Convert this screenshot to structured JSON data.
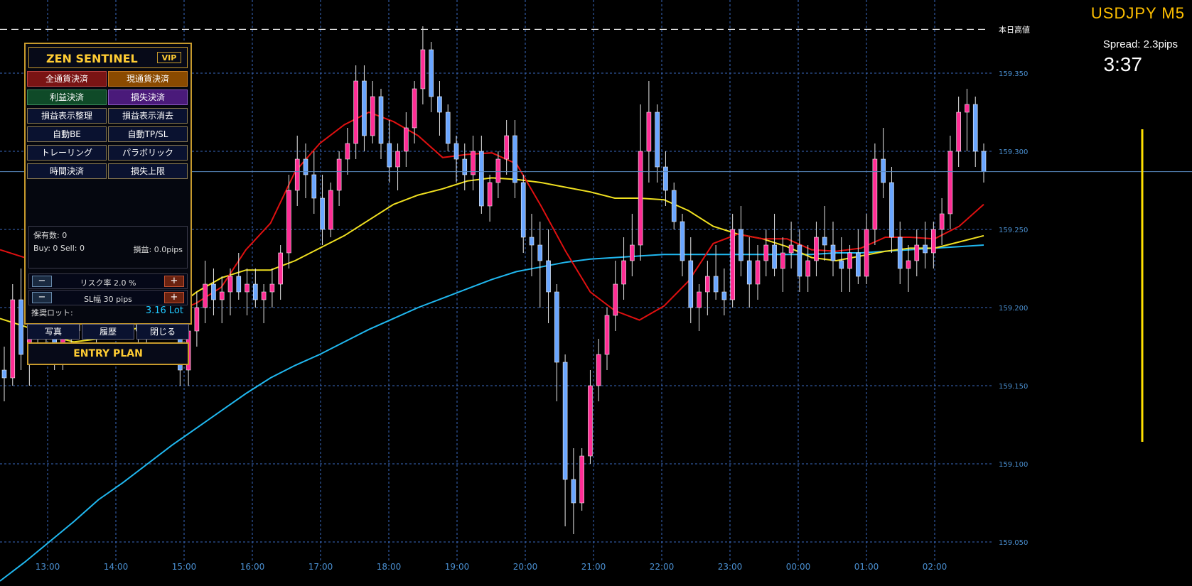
{
  "header": {
    "symbol": "USDJPY  M5",
    "spread": "Spread: 2.3pips",
    "timer": "3:37"
  },
  "chart_data": {
    "type": "candlestick",
    "symbol": "USDJPY",
    "timeframe": "M5",
    "ylim": [
      159.035,
      159.4
    ],
    "y_ticks": [
      "159.350",
      "159.300",
      "159.250",
      "159.200",
      "159.150",
      "159.100",
      "159.050"
    ],
    "y_tick_values": [
      159.35,
      159.3,
      159.25,
      159.2,
      159.15,
      159.1,
      159.05
    ],
    "x_ticks": [
      "13:00",
      "14:00",
      "15:00",
      "16:00",
      "17:00",
      "18:00",
      "19:00",
      "20:00",
      "21:00",
      "22:00",
      "23:00",
      "00:00",
      "01:00",
      "02:00"
    ],
    "day_high_label": "本日高値",
    "day_high": 159.378,
    "current_price": 159.287,
    "colors": {
      "bull": "#ff2d95",
      "bear": "#6aa6ff",
      "ma_fast": "#e01010",
      "ma_mid": "#f0e020",
      "ma_slow": "#20b8f0",
      "grid": "#3a6ac0"
    },
    "candles": [
      [
        159.16,
        159.175,
        159.14,
        159.155
      ],
      [
        159.155,
        159.215,
        159.15,
        159.205
      ],
      [
        159.205,
        159.225,
        159.16,
        159.17
      ],
      [
        159.17,
        159.2,
        159.15,
        159.185
      ],
      [
        159.185,
        159.21,
        159.175,
        159.195
      ],
      [
        159.195,
        159.215,
        159.17,
        159.18
      ],
      [
        159.18,
        159.2,
        159.16,
        159.175
      ],
      [
        159.175,
        159.19,
        159.16,
        159.185
      ],
      [
        159.185,
        159.205,
        159.175,
        159.195
      ],
      [
        159.195,
        159.215,
        159.185,
        159.205
      ],
      [
        159.205,
        159.22,
        159.185,
        159.19
      ],
      [
        159.19,
        159.205,
        159.175,
        159.195
      ],
      [
        159.195,
        159.215,
        159.185,
        159.2
      ],
      [
        159.2,
        159.225,
        159.19,
        159.21
      ],
      [
        159.21,
        159.23,
        159.195,
        159.2
      ],
      [
        159.2,
        159.215,
        159.18,
        159.19
      ],
      [
        159.19,
        159.205,
        159.17,
        159.185
      ],
      [
        159.185,
        159.2,
        159.175,
        159.19
      ],
      [
        159.19,
        159.215,
        159.18,
        159.205
      ],
      [
        159.205,
        159.23,
        159.195,
        159.215
      ],
      [
        159.215,
        159.225,
        159.18,
        159.185
      ],
      [
        159.185,
        159.195,
        159.15,
        159.16
      ],
      [
        159.16,
        159.195,
        159.15,
        159.185
      ],
      [
        159.185,
        159.21,
        159.175,
        159.2
      ],
      [
        159.2,
        159.23,
        159.19,
        159.215
      ],
      [
        159.215,
        159.225,
        159.195,
        159.205
      ],
      [
        159.205,
        159.22,
        159.19,
        159.21
      ],
      [
        159.21,
        159.225,
        159.195,
        159.22
      ],
      [
        159.22,
        159.235,
        159.205,
        159.21
      ],
      [
        159.21,
        159.225,
        159.195,
        159.215
      ],
      [
        159.215,
        159.225,
        159.2,
        159.205
      ],
      [
        159.205,
        159.215,
        159.19,
        159.21
      ],
      [
        159.21,
        159.225,
        159.2,
        159.215
      ],
      [
        159.215,
        159.24,
        159.205,
        159.235
      ],
      [
        159.235,
        159.285,
        159.225,
        159.275
      ],
      [
        159.275,
        159.31,
        159.265,
        159.295
      ],
      [
        159.295,
        159.305,
        159.27,
        159.285
      ],
      [
        159.285,
        159.3,
        159.26,
        159.27
      ],
      [
        159.27,
        159.285,
        159.24,
        159.25
      ],
      [
        159.25,
        159.28,
        159.245,
        159.275
      ],
      [
        159.275,
        159.3,
        159.265,
        159.295
      ],
      [
        159.295,
        159.315,
        159.285,
        159.305
      ],
      [
        159.305,
        159.355,
        159.295,
        159.345
      ],
      [
        159.345,
        159.355,
        159.3,
        159.31
      ],
      [
        159.31,
        159.345,
        159.305,
        159.335
      ],
      [
        159.335,
        159.34,
        159.295,
        159.305
      ],
      [
        159.305,
        159.32,
        159.28,
        159.29
      ],
      [
        159.29,
        159.305,
        159.275,
        159.3
      ],
      [
        159.3,
        159.325,
        159.29,
        159.315
      ],
      [
        159.315,
        159.345,
        159.305,
        159.34
      ],
      [
        159.34,
        159.38,
        159.33,
        159.365
      ],
      [
        159.365,
        159.37,
        159.325,
        159.335
      ],
      [
        159.335,
        159.345,
        159.31,
        159.325
      ],
      [
        159.325,
        159.33,
        159.3,
        159.305
      ],
      [
        159.305,
        159.31,
        159.28,
        159.295
      ],
      [
        159.295,
        159.305,
        159.275,
        159.285
      ],
      [
        159.285,
        159.31,
        159.275,
        159.3
      ],
      [
        159.3,
        159.31,
        159.26,
        159.265
      ],
      [
        159.265,
        159.285,
        159.255,
        159.28
      ],
      [
        159.28,
        159.3,
        159.27,
        159.295
      ],
      [
        159.295,
        159.32,
        159.285,
        159.31
      ],
      [
        159.31,
        159.32,
        159.27,
        159.28
      ],
      [
        159.28,
        159.285,
        159.235,
        159.245
      ],
      [
        159.245,
        159.26,
        159.22,
        159.24
      ],
      [
        159.24,
        159.255,
        159.2,
        159.23
      ],
      [
        159.23,
        159.25,
        159.19,
        159.21
      ],
      [
        159.21,
        159.215,
        159.14,
        159.165
      ],
      [
        159.165,
        159.17,
        159.06,
        159.09
      ],
      [
        159.09,
        159.11,
        159.055,
        159.075
      ],
      [
        159.075,
        159.11,
        159.07,
        159.105
      ],
      [
        159.105,
        159.16,
        159.1,
        159.15
      ],
      [
        159.15,
        159.18,
        159.14,
        159.17
      ],
      [
        159.17,
        159.2,
        159.16,
        159.195
      ],
      [
        159.195,
        159.23,
        159.185,
        159.215
      ],
      [
        159.215,
        159.245,
        159.205,
        159.23
      ],
      [
        159.23,
        159.26,
        159.22,
        159.24
      ],
      [
        159.24,
        159.33,
        159.23,
        159.3
      ],
      [
        159.3,
        159.345,
        159.28,
        159.325
      ],
      [
        159.325,
        159.33,
        159.28,
        159.29
      ],
      [
        159.29,
        159.3,
        159.265,
        159.275
      ],
      [
        159.275,
        159.28,
        159.25,
        159.255
      ],
      [
        159.255,
        159.26,
        159.22,
        159.23
      ],
      [
        159.23,
        159.245,
        159.19,
        159.2
      ],
      [
        159.2,
        159.215,
        159.185,
        159.21
      ],
      [
        159.21,
        159.23,
        159.195,
        159.22
      ],
      [
        159.22,
        159.24,
        159.205,
        159.21
      ],
      [
        159.21,
        159.225,
        159.195,
        159.205
      ],
      [
        159.205,
        159.26,
        159.2,
        159.25
      ],
      [
        159.25,
        159.265,
        159.22,
        159.23
      ],
      [
        159.23,
        159.245,
        159.2,
        159.215
      ],
      [
        159.215,
        159.24,
        159.205,
        159.23
      ],
      [
        159.23,
        159.25,
        159.22,
        159.24
      ],
      [
        159.24,
        159.26,
        159.22,
        159.225
      ],
      [
        159.225,
        159.245,
        159.21,
        159.235
      ],
      [
        159.235,
        159.255,
        159.225,
        159.24
      ],
      [
        159.24,
        159.25,
        159.21,
        159.22
      ],
      [
        159.22,
        159.24,
        159.21,
        159.23
      ],
      [
        159.23,
        159.255,
        159.22,
        159.245
      ],
      [
        159.245,
        159.265,
        159.23,
        159.24
      ],
      [
        159.24,
        159.255,
        159.22,
        159.23
      ],
      [
        159.23,
        159.245,
        159.21,
        159.225
      ],
      [
        159.225,
        159.24,
        159.21,
        159.235
      ],
      [
        159.235,
        159.25,
        159.215,
        159.22
      ],
      [
        159.22,
        159.26,
        159.215,
        159.25
      ],
      [
        159.25,
        159.305,
        159.24,
        159.295
      ],
      [
        159.295,
        159.315,
        159.27,
        159.28
      ],
      [
        159.28,
        159.29,
        159.235,
        159.245
      ],
      [
        159.245,
        159.255,
        159.215,
        159.225
      ],
      [
        159.225,
        159.24,
        159.21,
        159.23
      ],
      [
        159.23,
        159.25,
        159.22,
        159.24
      ],
      [
        159.24,
        159.255,
        159.225,
        159.235
      ],
      [
        159.235,
        159.255,
        159.225,
        159.25
      ],
      [
        159.25,
        159.27,
        159.24,
        159.26
      ],
      [
        159.26,
        159.31,
        159.25,
        159.3
      ],
      [
        159.3,
        159.335,
        159.29,
        159.325
      ],
      [
        159.325,
        159.34,
        159.3,
        159.33
      ],
      [
        159.33,
        159.335,
        159.29,
        159.3
      ],
      [
        159.3,
        159.305,
        159.28,
        159.287
      ]
    ],
    "ma_fast": [
      159.237,
      159.232,
      159.218,
      159.196,
      159.19,
      159.19,
      159.192,
      159.196,
      159.203,
      159.213,
      159.237,
      159.254,
      159.287,
      159.305,
      159.317,
      159.325,
      159.319,
      159.31,
      159.296,
      159.298,
      159.299,
      159.292,
      159.265,
      159.236,
      159.21,
      159.198,
      159.192,
      159.201,
      159.217,
      159.241,
      159.247,
      159.244,
      159.244,
      159.237,
      159.236,
      159.238,
      159.245,
      159.245,
      159.244,
      159.252,
      159.266
    ],
    "ma_mid": [
      159.193,
      159.188,
      159.182,
      159.178,
      159.18,
      159.185,
      159.188,
      159.198,
      159.21,
      159.219,
      159.224,
      159.224,
      159.23,
      159.238,
      159.246,
      159.256,
      159.266,
      159.272,
      159.276,
      159.281,
      159.283,
      159.282,
      159.28,
      159.277,
      159.274,
      159.27,
      159.27,
      159.269,
      159.262,
      159.252,
      159.247,
      159.244,
      159.239,
      159.232,
      159.23,
      159.233,
      159.236,
      159.238,
      159.238,
      159.242,
      159.246
    ],
    "ma_slow": [
      159.025,
      159.037,
      159.05,
      159.063,
      159.077,
      159.088,
      159.1,
      159.112,
      159.123,
      159.134,
      159.145,
      159.155,
      159.163,
      159.17,
      159.178,
      159.186,
      159.193,
      159.2,
      159.206,
      159.212,
      159.218,
      159.223,
      159.226,
      159.229,
      159.231,
      159.232,
      159.233,
      159.234,
      159.234,
      159.234,
      159.234,
      159.234,
      159.234,
      159.234,
      159.235,
      159.235,
      159.236,
      159.237,
      159.238,
      159.239,
      159.24
    ]
  },
  "panel": {
    "title": "ZEN SENTINEL",
    "badge": "VIP",
    "buttons": [
      {
        "label": "全通貨決済",
        "style": "b-red"
      },
      {
        "label": "現通貨決済",
        "style": "b-org"
      },
      {
        "label": "利益決済",
        "style": "b-grn"
      },
      {
        "label": "損失決済",
        "style": "b-pur"
      },
      {
        "label": "損益表示整理",
        "style": ""
      },
      {
        "label": "損益表示消去",
        "style": ""
      },
      {
        "label": "自動BE",
        "style": ""
      },
      {
        "label": "自動TP/SL",
        "style": ""
      },
      {
        "label": "トレーリング",
        "style": ""
      },
      {
        "label": "パラボリック",
        "style": ""
      },
      {
        "label": "時間決済",
        "style": ""
      },
      {
        "label": "損失上限",
        "style": ""
      }
    ],
    "positions_label": "保有数:  0",
    "buy_sell": "Buy: 0   Sell: 0",
    "pnl": "損益: 0.0pips",
    "risk": {
      "minus": "−",
      "text": "リスク率   2.0 %",
      "plus": "+"
    },
    "sl": {
      "minus": "−",
      "text": "SL幅   30 pips",
      "plus": "+"
    },
    "lot_label": "推奨ロット:",
    "lot_value": "3.16 Lot",
    "lot_color": "#20c8ff",
    "bottom_buttons": [
      "写真",
      "履歴",
      "閉じる"
    ],
    "entry": "ENTRY PLAN"
  }
}
